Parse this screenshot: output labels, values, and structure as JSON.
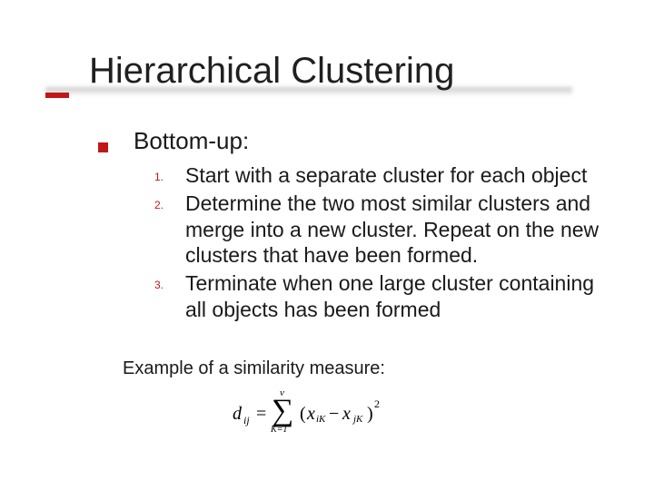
{
  "title": "Hierarchical Clustering",
  "accent_color": "#c01818",
  "text_color": "#1a1a1a",
  "bg_color": "#ffffff",
  "level1": {
    "label": "Bottom-up:"
  },
  "steps": [
    {
      "num": "1.",
      "text": "Start with a separate cluster for each object"
    },
    {
      "num": "2.",
      "text": "Determine the two most similar clusters and merge into a new cluster. Repeat on the new clusters that have been formed."
    },
    {
      "num": "3.",
      "text": "Terminate when one large cluster containing all objects has been formed"
    }
  ],
  "example_label": "Example of a similarity measure:",
  "formula": {
    "lhs_var": "d",
    "lhs_sub": "ij",
    "eq": "=",
    "sigma": "∑",
    "sum_upper": "v",
    "sum_lower": "K=1",
    "lparen": "(",
    "term1": "x",
    "term1_sub": "iK",
    "minus": "−",
    "term2": "x",
    "term2_sub": "jK",
    "rparen": ")",
    "power": "2"
  },
  "fonts": {
    "title": "Verdana",
    "body": "Verdana",
    "formula": "Times New Roman"
  }
}
